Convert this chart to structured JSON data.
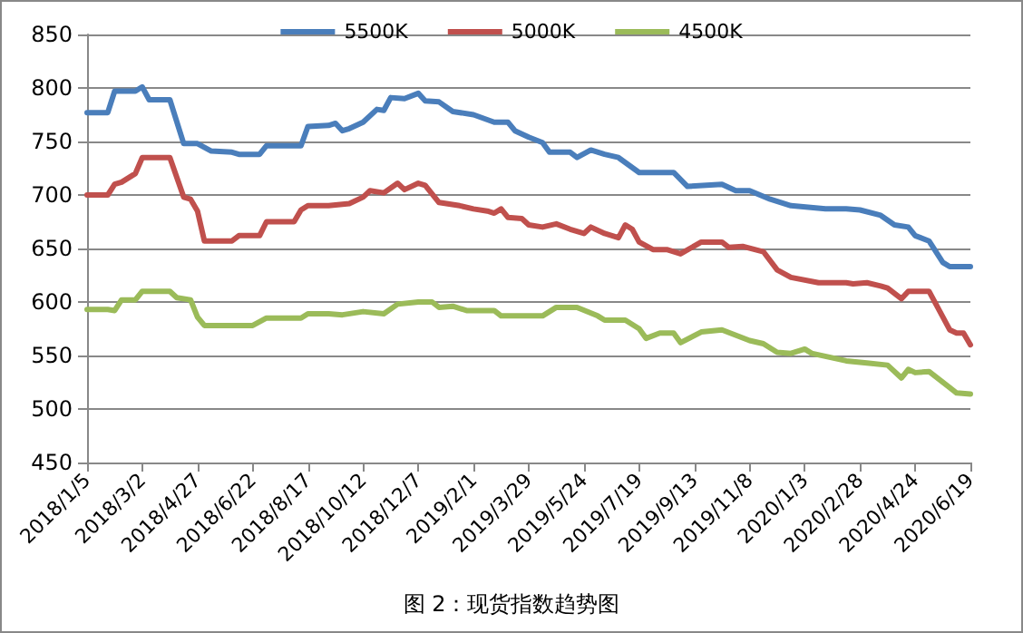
{
  "chart_data": {
    "type": "line",
    "marker": "none",
    "line_style": "solid",
    "grid": "y",
    "legend": "top",
    "annotations": [
      "图 2：现货指数趋势图"
    ],
    "xlim": [
      "2018-01-05",
      "2020-06-19"
    ],
    "xticks": [
      {
        "value": "2018-01-05",
        "label": "2018/1/5"
      },
      {
        "value": "2018-03-02",
        "label": "2018/3/2"
      },
      {
        "value": "2018-04-27",
        "label": "2018/4/27"
      },
      {
        "value": "2018-06-22",
        "label": "2018/6/22"
      },
      {
        "value": "2018-08-17",
        "label": "2018/8/17"
      },
      {
        "value": "2018-10-12",
        "label": "2018/10/12"
      },
      {
        "value": "2018-12-07",
        "label": "2018/12/7"
      },
      {
        "value": "2019-02-01",
        "label": "2019/2/1"
      },
      {
        "value": "2019-03-29",
        "label": "2019/3/29"
      },
      {
        "value": "2019-05-24",
        "label": "2019/5/24"
      },
      {
        "value": "2019-07-19",
        "label": "2019/7/19"
      },
      {
        "value": "2019-09-13",
        "label": "2019/9/13"
      },
      {
        "value": "2019-11-08",
        "label": "2019/11/8"
      },
      {
        "value": "2020-01-03",
        "label": "2020/1/3"
      },
      {
        "value": "2020-02-28",
        "label": "2020/2/28"
      },
      {
        "value": "2020-04-24",
        "label": "2020/4/24"
      },
      {
        "value": "2020-06-19",
        "label": "2020/6/19"
      }
    ],
    "ylim": [
      450,
      850
    ],
    "yticks": [
      450,
      500,
      550,
      600,
      650,
      700,
      750,
      800,
      850
    ],
    "series": [
      {
        "name": "5500K",
        "color": "#4a7ebb",
        "x": [
          "2018-01-05",
          "2018-01-26",
          "2018-02-02",
          "2018-02-23",
          "2018-03-02",
          "2018-03-09",
          "2018-03-30",
          "2018-04-13",
          "2018-04-27",
          "2018-05-11",
          "2018-06-01",
          "2018-06-08",
          "2018-06-29",
          "2018-07-06",
          "2018-08-10",
          "2018-08-17",
          "2018-09-07",
          "2018-09-14",
          "2018-09-21",
          "2018-09-28",
          "2018-10-12",
          "2018-10-26",
          "2018-11-02",
          "2018-11-09",
          "2018-11-23",
          "2018-12-07",
          "2018-12-14",
          "2018-12-28",
          "2019-01-11",
          "2019-02-01",
          "2019-02-22",
          "2019-03-08",
          "2019-03-15",
          "2019-03-29",
          "2019-04-12",
          "2019-04-19",
          "2019-05-10",
          "2019-05-17",
          "2019-05-31",
          "2019-06-14",
          "2019-06-28",
          "2019-07-19",
          "2019-08-23",
          "2019-09-06",
          "2019-10-11",
          "2019-10-25",
          "2019-11-08",
          "2019-11-29",
          "2019-12-20",
          "2020-01-24",
          "2020-02-14",
          "2020-02-28",
          "2020-03-20",
          "2020-04-03",
          "2020-04-17",
          "2020-04-24",
          "2020-05-08",
          "2020-05-22",
          "2020-05-29",
          "2020-06-19"
        ],
        "values": [
          777,
          777,
          797,
          797,
          801,
          789,
          789,
          748,
          748,
          741,
          740,
          738,
          738,
          746,
          746,
          764,
          765,
          767,
          760,
          762,
          768,
          780,
          779,
          791,
          790,
          795,
          788,
          787,
          778,
          775,
          768,
          768,
          760,
          754,
          749,
          740,
          740,
          735,
          742,
          738,
          735,
          721,
          721,
          708,
          710,
          704,
          704,
          696,
          690,
          687,
          687,
          686,
          681,
          672,
          670,
          662,
          657,
          637,
          633,
          633
        ]
      },
      {
        "name": "5000K",
        "color": "#c0504d",
        "x": [
          "2018-01-05",
          "2018-01-26",
          "2018-02-02",
          "2018-02-09",
          "2018-02-23",
          "2018-03-02",
          "2018-03-30",
          "2018-04-13",
          "2018-04-20",
          "2018-04-27",
          "2018-05-04",
          "2018-06-01",
          "2018-06-08",
          "2018-06-29",
          "2018-07-06",
          "2018-08-03",
          "2018-08-10",
          "2018-08-17",
          "2018-09-07",
          "2018-09-28",
          "2018-10-12",
          "2018-10-19",
          "2018-11-02",
          "2018-11-16",
          "2018-11-23",
          "2018-12-07",
          "2018-12-14",
          "2018-12-28",
          "2019-01-18",
          "2019-02-01",
          "2019-02-15",
          "2019-02-22",
          "2019-03-01",
          "2019-03-08",
          "2019-03-22",
          "2019-03-29",
          "2019-04-12",
          "2019-04-26",
          "2019-05-10",
          "2019-05-24",
          "2019-05-31",
          "2019-06-14",
          "2019-06-28",
          "2019-07-05",
          "2019-07-12",
          "2019-07-19",
          "2019-08-02",
          "2019-08-16",
          "2019-08-30",
          "2019-09-20",
          "2019-10-11",
          "2019-10-18",
          "2019-11-01",
          "2019-11-22",
          "2019-12-06",
          "2019-12-20",
          "2020-01-17",
          "2020-02-14",
          "2020-02-21",
          "2020-03-06",
          "2020-03-20",
          "2020-03-27",
          "2020-04-10",
          "2020-04-17",
          "2020-05-08",
          "2020-05-29",
          "2020-06-05",
          "2020-06-12",
          "2020-06-19"
        ],
        "values": [
          700,
          700,
          710,
          712,
          720,
          735,
          735,
          698,
          696,
          685,
          657,
          657,
          662,
          662,
          675,
          675,
          686,
          690,
          690,
          692,
          698,
          704,
          702,
          711,
          705,
          711,
          709,
          693,
          690,
          687,
          685,
          683,
          687,
          679,
          678,
          672,
          670,
          673,
          668,
          664,
          670,
          664,
          660,
          672,
          668,
          656,
          649,
          649,
          645,
          656,
          656,
          651,
          652,
          647,
          630,
          623,
          618,
          618,
          617,
          618,
          615,
          613,
          603,
          610,
          610,
          574,
          571,
          571,
          560
        ]
      },
      {
        "name": "4500K",
        "color": "#9bbb59",
        "x": [
          "2018-01-05",
          "2018-01-26",
          "2018-02-02",
          "2018-02-09",
          "2018-02-23",
          "2018-03-02",
          "2018-03-30",
          "2018-04-06",
          "2018-04-20",
          "2018-04-27",
          "2018-05-04",
          "2018-06-22",
          "2018-07-06",
          "2018-08-10",
          "2018-08-17",
          "2018-09-07",
          "2018-09-21",
          "2018-10-12",
          "2018-11-02",
          "2018-11-16",
          "2018-12-07",
          "2018-12-21",
          "2018-12-28",
          "2019-01-11",
          "2019-01-25",
          "2019-02-22",
          "2019-03-01",
          "2019-04-12",
          "2019-04-26",
          "2019-05-17",
          "2019-06-07",
          "2019-06-14",
          "2019-07-05",
          "2019-07-19",
          "2019-07-26",
          "2019-08-09",
          "2019-08-23",
          "2019-08-30",
          "2019-09-20",
          "2019-10-11",
          "2019-11-08",
          "2019-11-22",
          "2019-12-06",
          "2019-12-20",
          "2020-01-03",
          "2020-01-10",
          "2020-02-14",
          "2020-03-06",
          "2020-03-27",
          "2020-04-10",
          "2020-04-17",
          "2020-04-24",
          "2020-05-08",
          "2020-05-29",
          "2020-06-05",
          "2020-06-19"
        ],
        "values": [
          593,
          593,
          592,
          602,
          602,
          610,
          610,
          604,
          602,
          586,
          578,
          578,
          585,
          585,
          589,
          589,
          588,
          591,
          589,
          598,
          600,
          600,
          595,
          596,
          592,
          592,
          587,
          587,
          595,
          595,
          587,
          583,
          583,
          575,
          566,
          571,
          571,
          562,
          572,
          574,
          564,
          561,
          553,
          552,
          556,
          552,
          545,
          543,
          541,
          529,
          537,
          534,
          535,
          520,
          515,
          514
        ]
      }
    ]
  }
}
